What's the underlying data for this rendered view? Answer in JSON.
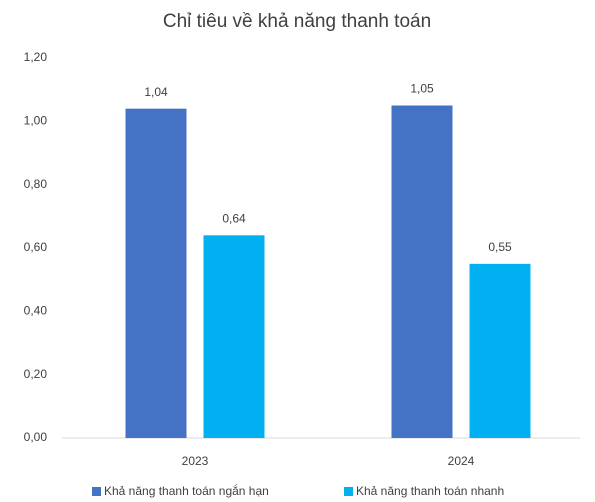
{
  "chart_data": {
    "type": "bar",
    "title": "Chỉ tiêu về khả năng thanh toán",
    "categories": [
      "2023",
      "2024"
    ],
    "series": [
      {
        "name": "Khả năng thanh toán ngắn hạn",
        "color": "#4472c4",
        "values": [
          1.04,
          1.05
        ],
        "value_labels": [
          "1,04",
          "1,05"
        ]
      },
      {
        "name": "Khả năng thanh toán nhanh",
        "color": "#00b0f0",
        "values": [
          0.64,
          0.55
        ],
        "value_labels": [
          "0,64",
          "0,55"
        ]
      }
    ],
    "ylim": [
      0,
      1.2
    ],
    "yticks": [
      {
        "value": 0,
        "label": "0,00"
      },
      {
        "value": 0.2,
        "label": "0,20"
      },
      {
        "value": 0.4,
        "label": "0,40"
      },
      {
        "value": 0.6,
        "label": "0,60"
      },
      {
        "value": 0.8,
        "label": "0,80"
      },
      {
        "value": 1,
        "label": "1,00"
      },
      {
        "value": 1.2,
        "label": "1,20"
      }
    ],
    "grid": false,
    "legend": "bottom"
  }
}
